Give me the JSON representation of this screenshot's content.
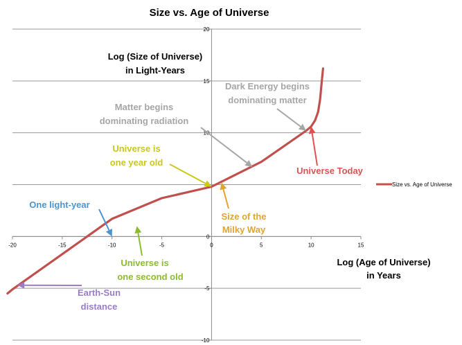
{
  "chart_data": {
    "type": "line",
    "title": "Size vs. Age of Universe",
    "xlabel": [
      "Log (Age of Universe)",
      "in Years"
    ],
    "ylabel": [
      "Log (Size of Universe)",
      "in Light-Years"
    ],
    "xlim": [
      -20,
      15
    ],
    "ylim": [
      -10,
      20
    ],
    "xticks": [
      "-20",
      "-15",
      "-10",
      "-5",
      "0",
      "5",
      "10",
      "15"
    ],
    "yticks": [
      "-10",
      "-5",
      "0",
      "5",
      "10",
      "15",
      "20"
    ],
    "grid": "horizontal",
    "legend_position": "right",
    "series": [
      {
        "name": "Size vs. Age of Universe",
        "color": "#c0504d",
        "x": [
          -20.5,
          -20,
          -15,
          -10,
          -5,
          0,
          5,
          9.5,
          10,
          10.4,
          10.7,
          10.9,
          11.05,
          11.2
        ],
        "y": [
          -5.5,
          -5.1,
          -1.7,
          1.7,
          3.7,
          4.8,
          7.2,
          10.2,
          10.6,
          11.2,
          12.0,
          13.2,
          14.7,
          16.2
        ]
      }
    ],
    "annotations": [
      {
        "id": "one-light-year",
        "lines": [
          "One light-year"
        ],
        "color": "#4f93cc",
        "target": [
          -10,
          0
        ]
      },
      {
        "id": "universe-one-second",
        "lines": [
          "Universe is",
          "one second old"
        ],
        "color": "#8cbc2e",
        "target": [
          -7.5,
          1.0
        ]
      },
      {
        "id": "universe-one-year",
        "lines": [
          "Universe is",
          "one year old"
        ],
        "color": "#c8c81e",
        "target": [
          0,
          4.8
        ]
      },
      {
        "id": "milky-way",
        "lines": [
          "Size of the",
          "Milky Way"
        ],
        "color": "#e0a431",
        "target": [
          1.0,
          5.2
        ]
      },
      {
        "id": "matter-radiation",
        "lines": [
          "Matter begins",
          "dominating radiation"
        ],
        "color": "#a6a6a6",
        "target": [
          4.1,
          6.7
        ]
      },
      {
        "id": "dark-energy",
        "lines": [
          "Dark Energy begins",
          "dominating matter"
        ],
        "color": "#a6a6a6",
        "target": [
          9.5,
          10.2
        ]
      },
      {
        "id": "universe-today",
        "lines": [
          "Universe Today"
        ],
        "color": "#e05050",
        "target": [
          10.0,
          10.6
        ]
      },
      {
        "id": "earth-sun",
        "lines": [
          "Earth-Sun",
          "distance"
        ],
        "color": "#9a7cc6",
        "target": [
          -19.5,
          -4.7
        ]
      }
    ]
  }
}
